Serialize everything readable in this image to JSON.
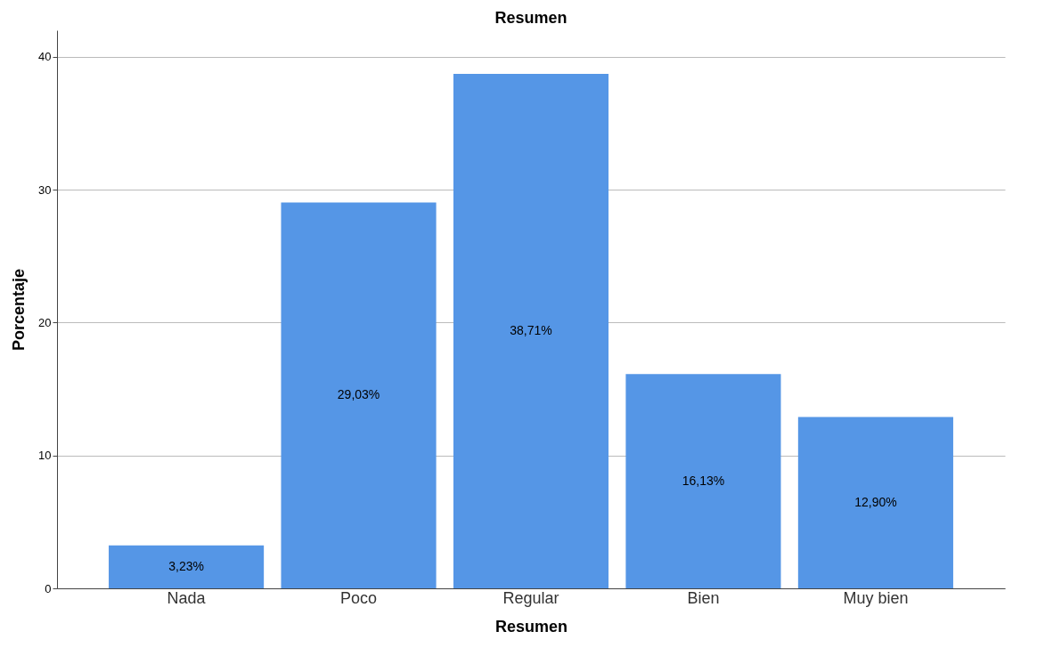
{
  "chart_data": {
    "type": "bar",
    "title": "Resumen",
    "xlabel": "Resumen",
    "ylabel": "Porcentaje",
    "categories": [
      "Nada",
      "Poco",
      "Regular",
      "Bien",
      "Muy bien"
    ],
    "values": [
      3.23,
      29.03,
      38.71,
      16.13,
      12.9
    ],
    "value_labels": [
      "3,23%",
      "29,03%",
      "38,71%",
      "16,13%",
      "12,90%"
    ],
    "color": "#5596e6",
    "ylim": [
      0,
      42
    ],
    "yticks": [
      0,
      10,
      20,
      30,
      40
    ],
    "grid": "y"
  }
}
